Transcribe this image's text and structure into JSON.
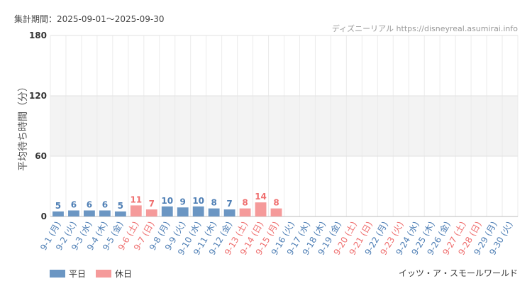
{
  "header": {
    "period_label": "集計期間：2025-09-01～2025-09-30",
    "source": "ディズニーリアル https://disneyreal.asumirai.info"
  },
  "footer": {
    "attraction": "イッツ・ア・スモールワールド"
  },
  "legend": {
    "weekday": "平日",
    "holiday": "休日"
  },
  "colors": {
    "weekday": "#6b96c3",
    "holiday": "#f59a9a",
    "weekday_label": "#4f7fb5",
    "holiday_label": "#ef6f6f"
  },
  "chart_data": {
    "type": "bar",
    "ylabel": "平均待ち時間（分）",
    "ylim": [
      0,
      180
    ],
    "yticks": [
      0,
      60,
      120,
      180
    ],
    "shaded_band": [
      60,
      120
    ],
    "grid": true,
    "legend_position": "bottom-left",
    "categories": [
      "9-1 (月)",
      "9-2 (火)",
      "9-3 (水)",
      "9-4 (木)",
      "9-5 (金)",
      "9-6 (土)",
      "9-7 (日)",
      "9-8 (月)",
      "9-9 (火)",
      "9-10 (水)",
      "9-11 (木)",
      "9-12 (金)",
      "9-13 (土)",
      "9-14 (日)",
      "9-15 (月)",
      "9-16 (火)",
      "9-17 (水)",
      "9-18 (木)",
      "9-19 (金)",
      "9-20 (土)",
      "9-21 (日)",
      "9-22 (月)",
      "9-23 (火)",
      "9-24 (水)",
      "9-25 (木)",
      "9-26 (金)",
      "9-27 (土)",
      "9-28 (日)",
      "9-29 (月)",
      "9-30 (火)"
    ],
    "day_type": [
      "weekday",
      "weekday",
      "weekday",
      "weekday",
      "weekday",
      "holiday",
      "holiday",
      "weekday",
      "weekday",
      "weekday",
      "weekday",
      "weekday",
      "holiday",
      "holiday",
      "holiday",
      "weekday",
      "weekday",
      "weekday",
      "weekday",
      "holiday",
      "holiday",
      "weekday",
      "holiday",
      "weekday",
      "weekday",
      "weekday",
      "holiday",
      "holiday",
      "weekday",
      "weekday"
    ],
    "values": [
      5,
      6,
      6,
      6,
      5,
      11,
      7,
      10,
      9,
      10,
      8,
      7,
      8,
      14,
      8,
      null,
      null,
      null,
      null,
      null,
      null,
      null,
      null,
      null,
      null,
      null,
      null,
      null,
      null,
      null
    ]
  }
}
